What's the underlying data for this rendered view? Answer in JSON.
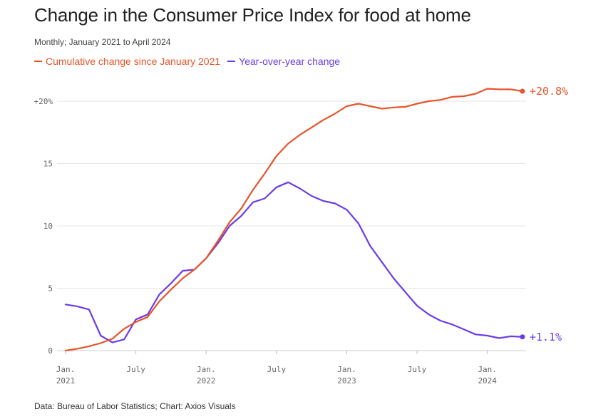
{
  "header": {
    "title": "Change in the Consumer Price Index for food at home",
    "subtitle": "Monthly; January 2021 to April 2024"
  },
  "footer": {
    "source": "Data: Bureau of Labor Statistics; Chart: Axios Visuals"
  },
  "colors": {
    "cumulative": "#e8542a",
    "yoy": "#6a3ce6",
    "grid": "#e6e6e6",
    "axis": "#cccccc"
  },
  "chart_data": {
    "type": "line",
    "title": "Change in the Consumer Price Index for food at home",
    "subtitle": "Monthly; January 2021 to April 2024",
    "xlabel": "",
    "ylabel": "",
    "ylim": [
      0,
      20
    ],
    "yticks": [
      {
        "value": 0,
        "label": "0"
      },
      {
        "value": 5,
        "label": "5"
      },
      {
        "value": 10,
        "label": "10"
      },
      {
        "value": 15,
        "label": "15"
      },
      {
        "value": 20,
        "label": "+20%"
      }
    ],
    "xticks": [
      {
        "index": 0,
        "line1": "Jan.",
        "line2": "2021"
      },
      {
        "index": 6,
        "line1": "July",
        "line2": ""
      },
      {
        "index": 12,
        "line1": "Jan.",
        "line2": "2022"
      },
      {
        "index": 18,
        "line1": "July",
        "line2": ""
      },
      {
        "index": 24,
        "line1": "Jan.",
        "line2": "2023"
      },
      {
        "index": 30,
        "line1": "July",
        "line2": ""
      },
      {
        "index": 36,
        "line1": "Jan.",
        "line2": "2024"
      }
    ],
    "x": [
      "2021-01",
      "2021-02",
      "2021-03",
      "2021-04",
      "2021-05",
      "2021-06",
      "2021-07",
      "2021-08",
      "2021-09",
      "2021-10",
      "2021-11",
      "2021-12",
      "2022-01",
      "2022-02",
      "2022-03",
      "2022-04",
      "2022-05",
      "2022-06",
      "2022-07",
      "2022-08",
      "2022-09",
      "2022-10",
      "2022-11",
      "2022-12",
      "2023-01",
      "2023-02",
      "2023-03",
      "2023-04",
      "2023-05",
      "2023-06",
      "2023-07",
      "2023-08",
      "2023-09",
      "2023-10",
      "2023-11",
      "2023-12",
      "2024-01",
      "2024-02",
      "2024-03",
      "2024-04"
    ],
    "legend_position": "top-left",
    "series": [
      {
        "name": "Cumulative change since January 2021",
        "color": "#e8542a",
        "end_label": "+20.8%",
        "values": [
          0.0,
          0.15,
          0.35,
          0.6,
          0.95,
          1.75,
          2.3,
          2.7,
          3.95,
          4.9,
          5.8,
          6.5,
          7.4,
          8.8,
          10.3,
          11.4,
          12.9,
          14.2,
          15.6,
          16.6,
          17.3,
          17.9,
          18.5,
          19.0,
          19.6,
          19.8,
          19.6,
          19.4,
          19.5,
          19.55,
          19.8,
          20.0,
          20.1,
          20.35,
          20.4,
          20.6,
          21.0,
          20.95,
          20.95,
          20.8
        ]
      },
      {
        "name": "Year-over-year change",
        "color": "#6a3ce6",
        "end_label": "+1.1%",
        "values": [
          3.7,
          3.55,
          3.3,
          1.2,
          0.65,
          0.9,
          2.5,
          2.9,
          4.5,
          5.4,
          6.4,
          6.5,
          7.4,
          8.6,
          10.0,
          10.8,
          11.9,
          12.2,
          13.1,
          13.5,
          13.0,
          12.4,
          12.0,
          11.8,
          11.3,
          10.2,
          8.4,
          7.1,
          5.8,
          4.7,
          3.6,
          2.9,
          2.4,
          2.1,
          1.7,
          1.3,
          1.2,
          1.0,
          1.15,
          1.1
        ]
      }
    ]
  }
}
